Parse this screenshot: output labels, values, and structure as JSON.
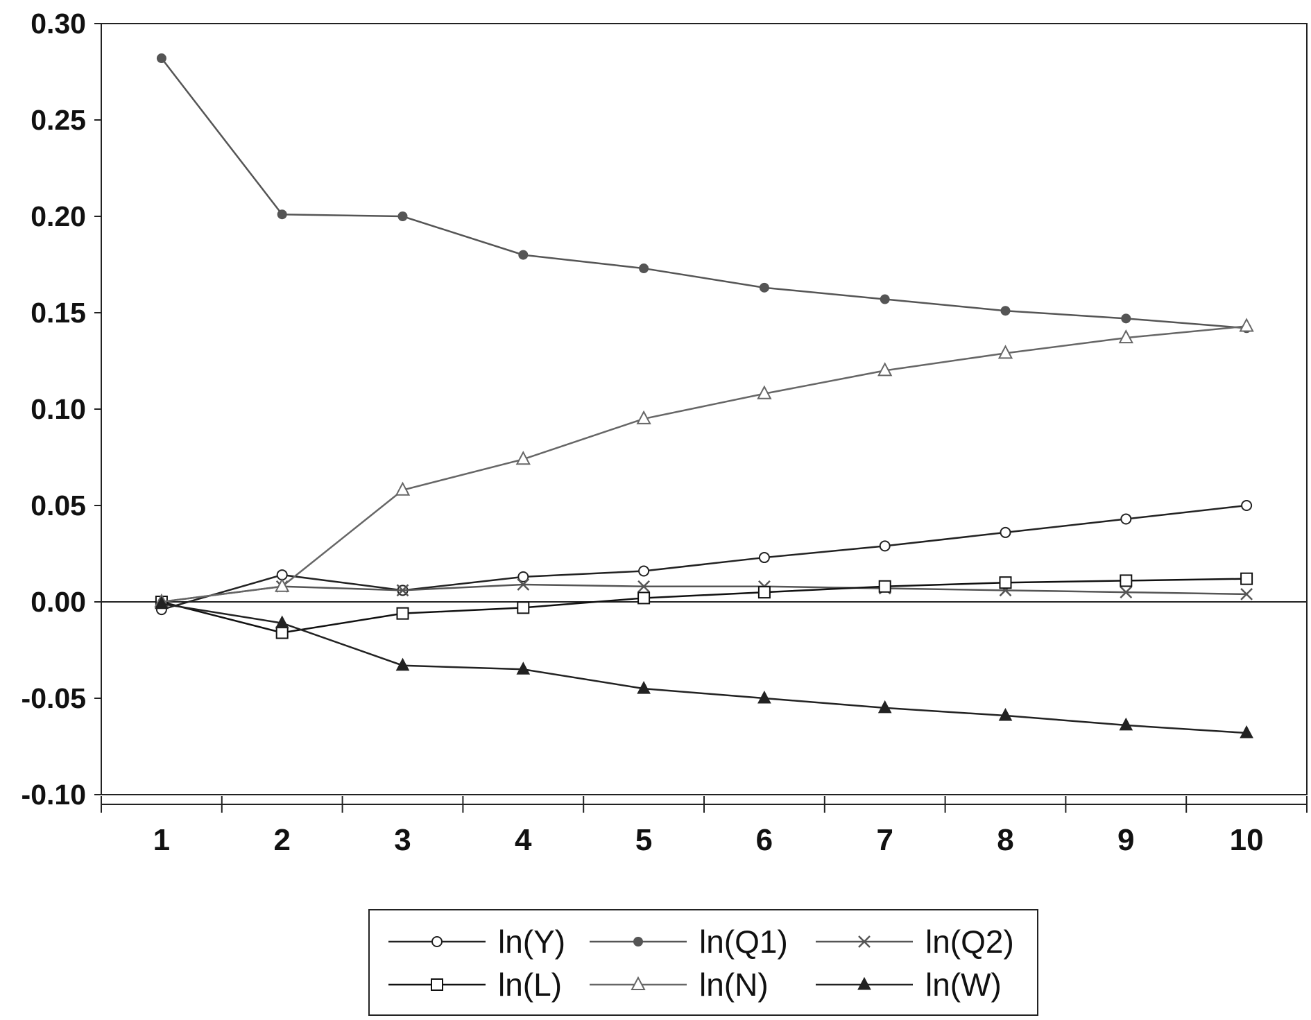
{
  "chart_data": {
    "type": "line",
    "title": "",
    "xlabel": "",
    "ylabel": "",
    "x": [
      1,
      2,
      3,
      4,
      5,
      6,
      7,
      8,
      9,
      10
    ],
    "xlim": [
      0.5,
      10.5
    ],
    "ylim": [
      -0.1,
      0.3
    ],
    "yticks": [
      "0.30",
      "0.25",
      "0.20",
      "0.15",
      "0.10",
      "0.05",
      "0.00",
      "-0.05",
      "-0.10"
    ],
    "ytick_values": [
      0.3,
      0.25,
      0.2,
      0.15,
      0.1,
      0.05,
      0.0,
      -0.05,
      -0.1
    ],
    "xticks": [
      "1",
      "2",
      "3",
      "4",
      "5",
      "6",
      "7",
      "8",
      "9",
      "10"
    ],
    "grid": false,
    "zero_line": true,
    "legend_position": "bottom-center",
    "series": [
      {
        "name": "ln(Y)",
        "marker": "circle-open",
        "color": "#222222",
        "values": [
          -0.004,
          0.014,
          0.006,
          0.013,
          0.016,
          0.023,
          0.029,
          0.036,
          0.043,
          0.05
        ]
      },
      {
        "name": "ln(Q1)",
        "marker": "circle-filled",
        "color": "#555555",
        "values": [
          0.282,
          0.201,
          0.2,
          0.18,
          0.173,
          0.163,
          0.157,
          0.151,
          0.147,
          0.142
        ]
      },
      {
        "name": "ln(Q2)",
        "marker": "x",
        "color": "#555555",
        "values": [
          0.0,
          0.008,
          0.006,
          0.009,
          0.008,
          0.008,
          0.007,
          0.006,
          0.005,
          0.004
        ]
      },
      {
        "name": "ln(L)",
        "marker": "square-open",
        "color": "#111111",
        "values": [
          0.0,
          -0.016,
          -0.006,
          -0.003,
          0.002,
          0.005,
          0.008,
          0.01,
          0.011,
          0.012
        ]
      },
      {
        "name": "ln(N)",
        "marker": "triangle-open",
        "color": "#666666",
        "values": [
          0.0,
          0.008,
          0.058,
          0.074,
          0.095,
          0.108,
          0.12,
          0.129,
          0.137,
          0.143
        ]
      },
      {
        "name": "ln(W)",
        "marker": "triangle-filled",
        "color": "#222222",
        "values": [
          -0.001,
          -0.011,
          -0.033,
          -0.035,
          -0.045,
          -0.05,
          -0.055,
          -0.059,
          -0.064,
          -0.068
        ]
      }
    ]
  }
}
